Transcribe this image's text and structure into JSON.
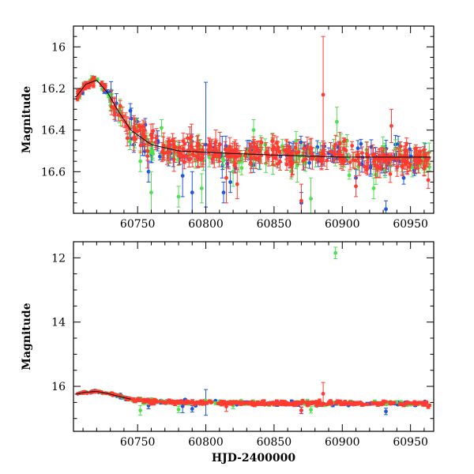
{
  "colors": {
    "series_blue": "#1f55e0",
    "series_green": "#4fe04f",
    "series_red": "#ff3b2f",
    "model": "#000000"
  },
  "chart_data": [
    {
      "type": "scatter",
      "panel": "top",
      "title": "",
      "xlabel": "",
      "ylabel": "Magnitude",
      "xlim": [
        60703,
        60967
      ],
      "ylim": [
        16.8,
        15.9
      ],
      "inverted_y": true,
      "xticks": [
        60750,
        60800,
        60850,
        60900,
        60950
      ],
      "yticks": [
        16,
        16.2,
        16.4,
        16.6
      ],
      "ytick_labels": [
        "16",
        "16.2",
        "16.4",
        "16.6"
      ],
      "baseline": [
        [
          60705,
          16.24
        ],
        [
          60712,
          16.18
        ],
        [
          60720,
          16.16
        ],
        [
          60728,
          16.22
        ],
        [
          60735,
          16.3
        ],
        [
          60745,
          16.4
        ],
        [
          60760,
          16.47
        ],
        [
          60780,
          16.5
        ],
        [
          60810,
          16.51
        ],
        [
          60850,
          16.52
        ],
        [
          60900,
          16.53
        ],
        [
          60965,
          16.53
        ]
      ],
      "series": [
        {
          "name": "blue",
          "outliers": [
            [
              60800,
              16.47,
              0.3
            ],
            [
              60783,
              16.62,
              0.1
            ],
            [
              60790,
              16.7,
              0.1
            ],
            [
              60758,
              16.6,
              0.05
            ],
            [
              60813,
              16.7,
              0.05
            ],
            [
              60818,
              16.65,
              0.05
            ],
            [
              60870,
              16.75,
              0.05
            ],
            [
              60910,
              16.63,
              0.04
            ],
            [
              60932,
              16.78,
              0.04
            ],
            [
              60945,
              16.63,
              0.03
            ],
            [
              60812,
              16.53,
              0.1
            ]
          ]
        },
        {
          "name": "green",
          "outliers": [
            [
              60752,
              16.55,
              0.05
            ],
            [
              60760,
              16.7,
              0.1
            ],
            [
              60780,
              16.72,
              0.05
            ],
            [
              60797,
              16.68,
              0.07
            ],
            [
              60820,
              16.6,
              0.07
            ],
            [
              60835,
              16.4,
              0.05
            ],
            [
              60867,
              16.57,
              0.08
            ],
            [
              60877,
              16.73,
              0.1
            ],
            [
              60896,
              16.36,
              0.07
            ],
            [
              60923,
              16.68,
              0.05
            ],
            [
              60960,
              16.5,
              0.04
            ]
          ]
        },
        {
          "name": "red",
          "outliers": [
            [
              60886,
              16.23,
              0.28
            ],
            [
              60815,
              16.63,
              0.12
            ],
            [
              60823,
              16.66,
              0.07
            ],
            [
              60870,
              16.74,
              0.08
            ],
            [
              60910,
              16.67,
              0.05
            ],
            [
              60963,
              16.64,
              0.04
            ],
            [
              60936,
              16.38,
              0.08
            ]
          ]
        }
      ]
    },
    {
      "type": "scatter",
      "panel": "bottom",
      "title": "",
      "xlabel": "HJD-2400000",
      "ylabel": "Magnitude",
      "xlim": [
        60703,
        60967
      ],
      "ylim": [
        17.4,
        11.5
      ],
      "inverted_y": true,
      "xticks": [
        60750,
        60800,
        60850,
        60900,
        60950
      ],
      "yticks": [
        12,
        14,
        16
      ],
      "ytick_labels": [
        "12",
        "14",
        "16"
      ],
      "baseline": [
        [
          60705,
          16.24
        ],
        [
          60712,
          16.18
        ],
        [
          60720,
          16.16
        ],
        [
          60728,
          16.22
        ],
        [
          60735,
          16.3
        ],
        [
          60745,
          16.4
        ],
        [
          60760,
          16.47
        ],
        [
          60780,
          16.5
        ],
        [
          60810,
          16.51
        ],
        [
          60850,
          16.52
        ],
        [
          60900,
          16.53
        ],
        [
          60965,
          16.53
        ]
      ],
      "series": [
        {
          "name": "blue",
          "outliers": [
            [
              60800,
              16.5,
              0.4
            ],
            [
              60783,
              16.62,
              0.2
            ],
            [
              60758,
              16.6,
              0.1
            ],
            [
              60870,
              16.75,
              0.1
            ],
            [
              60932,
              16.78,
              0.1
            ],
            [
              60790,
              16.7,
              0.1
            ]
          ]
        },
        {
          "name": "green",
          "outliers": [
            [
              60895,
              11.85,
              0.18
            ],
            [
              60752,
              16.75,
              0.15
            ],
            [
              60780,
              16.72,
              0.1
            ],
            [
              60820,
              16.6,
              0.1
            ],
            [
              60877,
              16.73,
              0.1
            ]
          ]
        },
        {
          "name": "red",
          "outliers": [
            [
              60886,
              16.23,
              0.35
            ],
            [
              60815,
              16.63,
              0.15
            ],
            [
              60870,
              16.74,
              0.1
            ],
            [
              60963,
              16.64,
              0.05
            ]
          ]
        }
      ]
    }
  ]
}
